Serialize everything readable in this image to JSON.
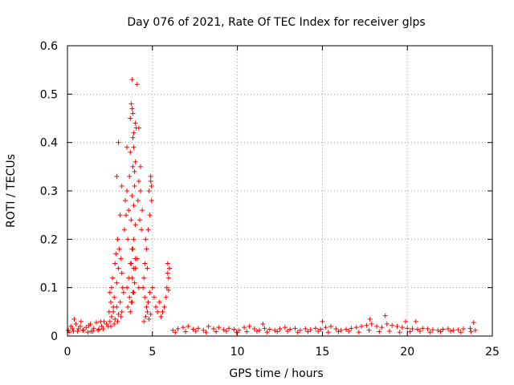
{
  "chart_data": {
    "type": "scatter",
    "title": "Day 076 of 2021, Rate Of TEC Index for receiver glps",
    "xlabel": "GPS time / hours",
    "ylabel": "ROTI / TECUs",
    "xlim": [
      0,
      25
    ],
    "ylim": [
      0,
      0.6
    ],
    "xticks": [
      "0",
      "5",
      "10",
      "15",
      "20",
      "25"
    ],
    "yticks": [
      "0",
      "0.1",
      "0.2",
      "0.3",
      "0.4",
      "0.5",
      "0.6"
    ],
    "grid": true,
    "marker": "+",
    "color": "#ff0000",
    "series": [
      {
        "x": [
          0.05,
          0.2,
          0.35,
          0.5,
          0.65,
          0.8,
          0.95,
          1.1,
          1.25,
          1.4,
          1.55,
          1.7,
          1.85,
          2.0,
          2.15,
          2.3,
          0.1,
          0.3,
          0.6,
          0.9,
          1.2,
          1.5,
          1.8,
          2.1,
          2.4,
          0.4,
          0.75,
          1.35,
          1.95,
          2.45,
          2.5,
          2.55,
          2.6,
          2.65,
          2.7,
          2.75,
          2.8,
          2.85,
          2.9,
          2.95,
          3.0,
          3.05,
          3.1,
          3.15,
          3.2,
          3.25,
          3.3,
          2.5,
          2.6,
          2.7,
          2.8,
          2.9,
          3.0,
          3.1,
          3.2,
          2.55,
          2.75,
          2.95,
          3.15,
          3.35,
          3.4,
          3.45,
          3.5,
          3.55,
          3.6,
          3.65,
          3.7,
          3.75,
          3.8,
          3.85,
          3.9,
          3.95,
          4.0,
          3.5,
          3.6,
          3.7,
          3.8,
          3.9,
          4.0,
          3.55,
          3.65,
          3.75,
          3.85,
          3.95,
          3.7,
          3.75,
          3.8,
          3.85,
          3.9,
          3.95,
          4.0,
          4.05,
          4.1,
          4.15,
          4.2,
          4.25,
          4.3,
          4.35,
          4.4,
          3.75,
          3.8,
          3.85,
          3.9,
          4.0,
          4.1,
          4.2,
          3.7,
          3.8,
          3.9,
          4.45,
          4.5,
          4.55,
          4.6,
          4.65,
          4.7,
          4.75,
          4.8,
          4.85,
          4.9,
          4.95,
          5.0,
          5.1,
          5.2,
          5.3,
          5.4,
          5.5,
          4.5,
          4.6,
          4.7,
          4.8,
          4.9,
          4.55,
          4.65,
          4.75,
          4.85,
          5.6,
          5.7,
          5.8,
          5.85,
          5.9,
          5.95,
          6.0,
          5.9,
          5.95,
          3.0,
          2.9,
          3.2,
          3.5,
          3.8,
          3.85,
          3.9,
          4.0,
          4.2,
          4.3,
          4.9,
          4.95,
          6.2,
          6.5,
          6.8,
          7.1,
          7.4,
          7.7,
          8.0,
          8.3,
          8.6,
          8.9,
          9.2,
          9.5,
          9.8,
          10.1,
          10.4,
          10.7,
          11.0,
          11.3,
          11.6,
          11.9,
          12.2,
          12.5,
          12.8,
          13.1,
          13.4,
          13.7,
          14.0,
          14.3,
          14.6,
          14.9,
          15.2,
          15.5,
          15.8,
          16.1,
          16.4,
          16.7,
          17.0,
          17.3,
          17.6,
          17.9,
          18.2,
          18.5,
          18.8,
          19.1,
          19.4,
          19.7,
          20.0,
          20.3,
          20.6,
          20.9,
          21.2,
          21.5,
          21.8,
          22.1,
          22.4,
          22.7,
          23.0,
          23.3,
          23.7,
          24.0,
          6.35,
          6.95,
          7.55,
          8.15,
          8.75,
          9.35,
          9.95,
          10.55,
          11.15,
          11.75,
          12.35,
          12.95,
          13.55,
          14.15,
          14.75,
          15.35,
          15.95,
          16.55,
          17.15,
          17.75,
          18.35,
          18.95,
          19.55,
          20.15,
          20.75,
          21.35,
          21.95,
          22.55,
          23.15,
          23.75,
          11.5,
          15.0,
          17.8,
          18.7,
          19.9,
          20.5,
          23.9
        ],
        "y": [
          0.012,
          0.02,
          0.01,
          0.025,
          0.015,
          0.03,
          0.012,
          0.018,
          0.022,
          0.01,
          0.016,
          0.028,
          0.014,
          0.02,
          0.03,
          0.025,
          0.008,
          0.015,
          0.01,
          0.012,
          0.008,
          0.01,
          0.012,
          0.015,
          0.02,
          0.035,
          0.02,
          0.025,
          0.03,
          0.05,
          0.09,
          0.07,
          0.1,
          0.12,
          0.06,
          0.08,
          0.15,
          0.17,
          0.11,
          0.2,
          0.14,
          0.18,
          0.25,
          0.16,
          0.13,
          0.1,
          0.09,
          0.03,
          0.04,
          0.05,
          0.035,
          0.06,
          0.045,
          0.07,
          0.05,
          0.02,
          0.025,
          0.03,
          0.04,
          0.22,
          0.28,
          0.25,
          0.3,
          0.2,
          0.26,
          0.33,
          0.38,
          0.24,
          0.29,
          0.35,
          0.27,
          0.31,
          0.23,
          0.1,
          0.12,
          0.15,
          0.18,
          0.14,
          0.16,
          0.06,
          0.08,
          0.07,
          0.09,
          0.11,
          0.45,
          0.48,
          0.53,
          0.41,
          0.39,
          0.34,
          0.36,
          0.43,
          0.52,
          0.28,
          0.32,
          0.24,
          0.3,
          0.22,
          0.26,
          0.15,
          0.12,
          0.18,
          0.2,
          0.14,
          0.16,
          0.1,
          0.05,
          0.07,
          0.09,
          0.1,
          0.12,
          0.15,
          0.2,
          0.18,
          0.14,
          0.22,
          0.3,
          0.25,
          0.33,
          0.28,
          0.1,
          0.08,
          0.06,
          0.05,
          0.07,
          0.04,
          0.03,
          0.04,
          0.05,
          0.035,
          0.045,
          0.08,
          0.06,
          0.07,
          0.09,
          0.05,
          0.06,
          0.08,
          0.1,
          0.15,
          0.12,
          0.14,
          0.13,
          0.095,
          0.4,
          0.33,
          0.31,
          0.39,
          0.47,
          0.46,
          0.42,
          0.44,
          0.43,
          0.35,
          0.32,
          0.31,
          0.012,
          0.015,
          0.018,
          0.02,
          0.014,
          0.016,
          0.012,
          0.02,
          0.015,
          0.018,
          0.013,
          0.016,
          0.014,
          0.012,
          0.018,
          0.02,
          0.015,
          0.012,
          0.016,
          0.014,
          0.012,
          0.015,
          0.018,
          0.014,
          0.016,
          0.012,
          0.015,
          0.013,
          0.016,
          0.014,
          0.018,
          0.02,
          0.015,
          0.012,
          0.014,
          0.016,
          0.018,
          0.02,
          0.022,
          0.025,
          0.02,
          0.018,
          0.025,
          0.022,
          0.02,
          0.018,
          0.016,
          0.015,
          0.014,
          0.016,
          0.015,
          0.013,
          0.012,
          0.014,
          0.015,
          0.012,
          0.013,
          0.015,
          0.016,
          0.012,
          0.008,
          0.009,
          0.01,
          0.008,
          0.009,
          0.01,
          0.008,
          0.009,
          0.01,
          0.008,
          0.009,
          0.01,
          0.008,
          0.009,
          0.01,
          0.008,
          0.009,
          0.01,
          0.008,
          0.012,
          0.009,
          0.01,
          0.008,
          0.009,
          0.01,
          0.008,
          0.009,
          0.01,
          0.008,
          0.009,
          0.025,
          0.03,
          0.035,
          0.042,
          0.03,
          0.03,
          0.028
        ]
      }
    ]
  }
}
